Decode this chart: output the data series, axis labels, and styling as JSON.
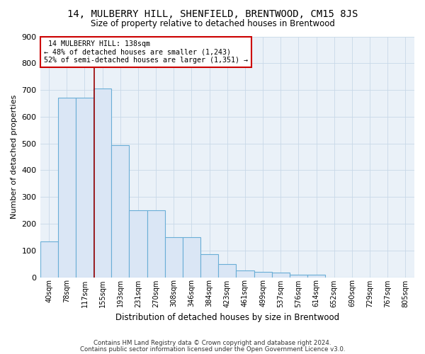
{
  "title": "14, MULBERRY HILL, SHENFIELD, BRENTWOOD, CM15 8JS",
  "subtitle": "Size of property relative to detached houses in Brentwood",
  "xlabel": "Distribution of detached houses by size in Brentwood",
  "ylabel": "Number of detached properties",
  "footnote1": "Contains HM Land Registry data © Crown copyright and database right 2024.",
  "footnote2": "Contains public sector information licensed under the Open Government Licence v3.0.",
  "bin_labels": [
    "40sqm",
    "78sqm",
    "117sqm",
    "155sqm",
    "193sqm",
    "231sqm",
    "270sqm",
    "308sqm",
    "346sqm",
    "384sqm",
    "423sqm",
    "461sqm",
    "499sqm",
    "537sqm",
    "576sqm",
    "614sqm",
    "652sqm",
    "690sqm",
    "729sqm",
    "767sqm",
    "805sqm"
  ],
  "bar_values": [
    135,
    670,
    670,
    705,
    495,
    250,
    250,
    150,
    150,
    85,
    50,
    25,
    20,
    17,
    10,
    10,
    0,
    0,
    0,
    0,
    0
  ],
  "bar_color": "#dae6f5",
  "bar_edge_color": "#6aaed6",
  "property_label": "14 MULBERRY HILL: 138sqm",
  "pct_smaller": 48,
  "n_smaller": 1243,
  "pct_larger": 52,
  "n_larger": 1351,
  "vline_color": "#990000",
  "vline_x_index": 2.55,
  "ylim": [
    0,
    900
  ],
  "yticks": [
    0,
    100,
    200,
    300,
    400,
    500,
    600,
    700,
    800,
    900
  ],
  "annotation_box_color": "#cc0000",
  "grid_color": "#c8d8e8",
  "bg_color": "#eaf1f8"
}
